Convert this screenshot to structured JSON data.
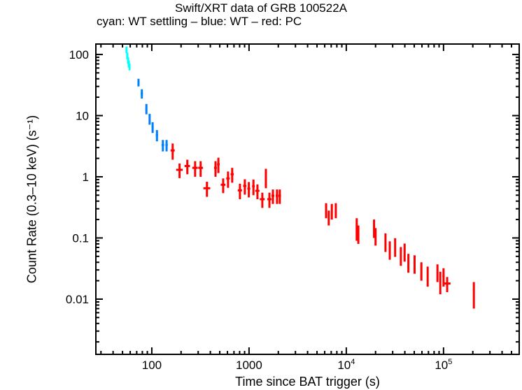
{
  "chart_data": {
    "type": "scatter",
    "title": "Swift/XRT data of GRB 100522A",
    "subtitle": "cyan: WT settling – blue: WT – red: PC",
    "xlabel": "Time since BAT trigger (s)",
    "ylabel": "Count Rate (0.3–10 keV) (s⁻¹)",
    "xscale": "log",
    "yscale": "log",
    "xlim": [
      26.6,
      600000
    ],
    "ylim": [
      0.00125,
      148
    ],
    "x_ticks": [
      {
        "value": 100,
        "label": "100"
      },
      {
        "value": 1000,
        "label": "1000"
      },
      {
        "value": 10000,
        "label": "10",
        "sup": "4"
      },
      {
        "value": 100000,
        "label": "10",
        "sup": "5"
      }
    ],
    "y_ticks": [
      {
        "value": 100,
        "label": "100"
      },
      {
        "value": 10,
        "label": "10"
      },
      {
        "value": 1,
        "label": "1"
      },
      {
        "value": 0.1,
        "label": "0.1"
      },
      {
        "value": 0.01,
        "label": "0.01"
      }
    ],
    "series": [
      {
        "name": "WT settling",
        "color": "#00ffff",
        "points": [
          {
            "t": 55,
            "r": 120,
            "dtl": 1,
            "dth": 1,
            "dr": 15
          },
          {
            "t": 56,
            "r": 95,
            "dtl": 1,
            "dth": 1,
            "dr": 12
          },
          {
            "t": 57,
            "r": 80,
            "dtl": 1,
            "dth": 1,
            "dr": 10
          },
          {
            "t": 58,
            "r": 70,
            "dtl": 1,
            "dth": 1,
            "dr": 9
          },
          {
            "t": 59,
            "r": 63,
            "dtl": 1,
            "dth": 1,
            "dr": 8
          }
        ]
      },
      {
        "name": "WT",
        "color": "#0080ff",
        "points": [
          {
            "t": 73,
            "r": 35,
            "dtl": 1.5,
            "dth": 1.5,
            "dr": 5
          },
          {
            "t": 79,
            "r": 23,
            "dtl": 2,
            "dth": 2,
            "dr": 4
          },
          {
            "t": 88,
            "r": 13,
            "dtl": 2,
            "dth": 2,
            "dr": 2.5
          },
          {
            "t": 95,
            "r": 8.9,
            "dtl": 2,
            "dth": 2,
            "dr": 1.8
          },
          {
            "t": 102,
            "r": 6.5,
            "dtl": 2.5,
            "dth": 2.5,
            "dr": 1.3
          },
          {
            "t": 113,
            "r": 4.8,
            "dtl": 3,
            "dth": 3,
            "dr": 1.0
          },
          {
            "t": 130,
            "r": 3.3,
            "dtl": 4,
            "dth": 4,
            "dr": 0.7
          },
          {
            "t": 142,
            "r": 3.3,
            "dtl": 4,
            "dth": 4,
            "dr": 0.7
          }
        ]
      },
      {
        "name": "PC",
        "color": "#ff0000",
        "points": [
          {
            "t": 164,
            "r": 2.7,
            "dtl": 8,
            "dth": 8,
            "dr": 0.8
          },
          {
            "t": 193,
            "r": 1.3,
            "dtl": 15,
            "dth": 15,
            "dr": 0.35
          },
          {
            "t": 232,
            "r": 1.5,
            "dtl": 15,
            "dth": 15,
            "dr": 0.4
          },
          {
            "t": 279,
            "r": 1.4,
            "dtl": 18,
            "dth": 18,
            "dr": 0.4
          },
          {
            "t": 318,
            "r": 1.4,
            "dtl": 18,
            "dth": 18,
            "dr": 0.4
          },
          {
            "t": 369,
            "r": 0.65,
            "dtl": 30,
            "dth": 30,
            "dr": 0.18
          },
          {
            "t": 452,
            "r": 1.4,
            "dtl": 15,
            "dth": 15,
            "dr": 0.4
          },
          {
            "t": 484,
            "r": 1.6,
            "dtl": 15,
            "dth": 15,
            "dr": 0.45
          },
          {
            "t": 542,
            "r": 0.74,
            "dtl": 30,
            "dth": 30,
            "dr": 0.2
          },
          {
            "t": 608,
            "r": 0.94,
            "dtl": 25,
            "dth": 25,
            "dr": 0.28
          },
          {
            "t": 671,
            "r": 1.1,
            "dtl": 25,
            "dth": 25,
            "dr": 0.3
          },
          {
            "t": 806,
            "r": 0.6,
            "dtl": 40,
            "dth": 40,
            "dr": 0.17
          },
          {
            "t": 905,
            "r": 0.71,
            "dtl": 35,
            "dth": 35,
            "dr": 0.2
          },
          {
            "t": 995,
            "r": 0.64,
            "dtl": 35,
            "dth": 35,
            "dr": 0.18
          },
          {
            "t": 1110,
            "r": 0.7,
            "dtl": 35,
            "dth": 35,
            "dr": 0.2
          },
          {
            "t": 1220,
            "r": 0.59,
            "dtl": 60,
            "dth": 60,
            "dr": 0.16
          },
          {
            "t": 1370,
            "r": 0.43,
            "dtl": 80,
            "dth": 80,
            "dr": 0.12
          },
          {
            "t": 1490,
            "r": 1.0,
            "dtl": 10,
            "dth": 10,
            "dr": 0.35
          },
          {
            "t": 1620,
            "r": 0.43,
            "dtl": 80,
            "dth": 80,
            "dr": 0.12
          },
          {
            "t": 1760,
            "r": 0.49,
            "dtl": 60,
            "dth": 60,
            "dr": 0.13
          },
          {
            "t": 1940,
            "r": 0.49,
            "dtl": 60,
            "dth": 60,
            "dr": 0.13
          },
          {
            "t": 2070,
            "r": 0.49,
            "dtl": 60,
            "dth": 60,
            "dr": 0.13
          },
          {
            "t": 6200,
            "r": 0.29,
            "dtl": 60,
            "dth": 60,
            "dr": 0.08
          },
          {
            "t": 6600,
            "r": 0.22,
            "dtl": 60,
            "dth": 60,
            "dr": 0.06
          },
          {
            "t": 7100,
            "r": 0.28,
            "dtl": 80,
            "dth": 80,
            "dr": 0.08
          },
          {
            "t": 7800,
            "r": 0.29,
            "dtl": 80,
            "dth": 80,
            "dr": 0.08
          },
          {
            "t": 12800,
            "r": 0.15,
            "dtl": 150,
            "dth": 150,
            "dr": 0.06
          },
          {
            "t": 13300,
            "r": 0.12,
            "dtl": 150,
            "dth": 150,
            "dr": 0.04
          },
          {
            "t": 19300,
            "r": 0.15,
            "dtl": 150,
            "dth": 150,
            "dr": 0.05
          },
          {
            "t": 20000,
            "r": 0.11,
            "dtl": 200,
            "dth": 200,
            "dr": 0.035
          },
          {
            "t": 25300,
            "r": 0.089,
            "dtl": 300,
            "dth": 300,
            "dr": 0.03
          },
          {
            "t": 28000,
            "r": 0.066,
            "dtl": 300,
            "dth": 300,
            "dr": 0.022
          },
          {
            "t": 31800,
            "r": 0.074,
            "dtl": 300,
            "dth": 300,
            "dr": 0.025
          },
          {
            "t": 36400,
            "r": 0.053,
            "dtl": 400,
            "dth": 400,
            "dr": 0.018
          },
          {
            "t": 39800,
            "r": 0.061,
            "dtl": 400,
            "dth": 400,
            "dr": 0.02
          },
          {
            "t": 43500,
            "r": 0.041,
            "dtl": 400,
            "dth": 400,
            "dr": 0.014
          },
          {
            "t": 50400,
            "r": 0.039,
            "dtl": 500,
            "dth": 500,
            "dr": 0.013
          },
          {
            "t": 59200,
            "r": 0.03,
            "dtl": 600,
            "dth": 600,
            "dr": 0.01
          },
          {
            "t": 68700,
            "r": 0.025,
            "dtl": 700,
            "dth": 700,
            "dr": 0.009
          },
          {
            "t": 86600,
            "r": 0.028,
            "dtl": 1500,
            "dth": 1500,
            "dr": 0.009
          },
          {
            "t": 92600,
            "r": 0.02,
            "dtl": 1500,
            "dth": 1500,
            "dr": 0.008
          },
          {
            "t": 100000,
            "r": 0.024,
            "dtl": 2500,
            "dth": 2500,
            "dr": 0.008
          },
          {
            "t": 109000,
            "r": 0.018,
            "dtl": 9000,
            "dth": 9000,
            "dr": 0.005
          },
          {
            "t": 205000,
            "r": 0.013,
            "dtl": 1500,
            "dth": 1500,
            "dr": 0.006
          }
        ]
      }
    ]
  }
}
